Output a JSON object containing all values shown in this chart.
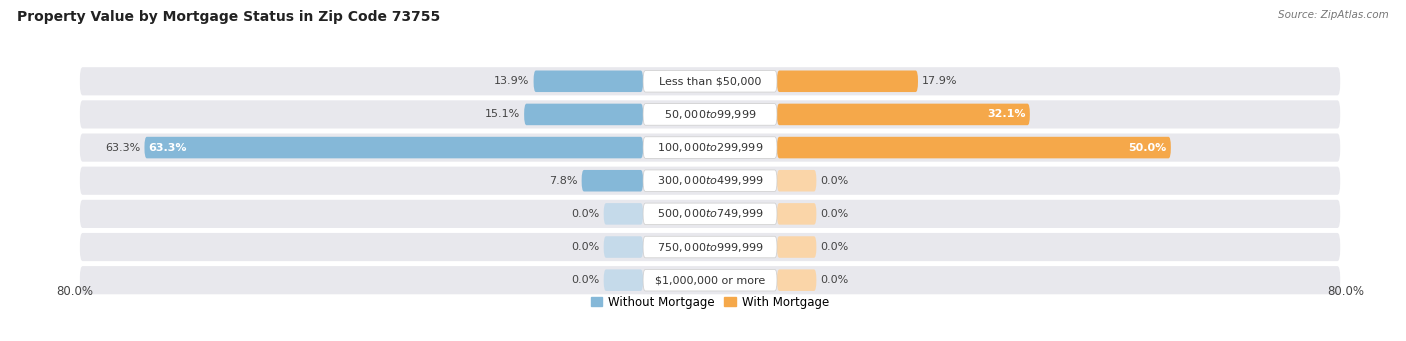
{
  "title": "Property Value by Mortgage Status in Zip Code 73755",
  "source": "Source: ZipAtlas.com",
  "categories": [
    "Less than $50,000",
    "$50,000 to $99,999",
    "$100,000 to $299,999",
    "$300,000 to $499,999",
    "$500,000 to $749,999",
    "$750,000 to $999,999",
    "$1,000,000 or more"
  ],
  "without_mortgage": [
    13.9,
    15.1,
    63.3,
    7.8,
    0.0,
    0.0,
    0.0
  ],
  "with_mortgage": [
    17.9,
    32.1,
    50.0,
    0.0,
    0.0,
    0.0,
    0.0
  ],
  "x_axis_label_left": "80.0%",
  "x_axis_label_right": "80.0%",
  "bar_color_left": "#85b8d8",
  "bar_color_right": "#f5a84a",
  "bar_color_left_zero": "#c5daea",
  "bar_color_right_zero": "#fad5a8",
  "legend_left": "Without Mortgage",
  "legend_right": "With Mortgage",
  "background_row_color": "#e8e8ed",
  "max_value": 80.0,
  "stub_value": 5.0,
  "title_fontsize": 10,
  "label_fontsize": 8,
  "category_fontsize": 8,
  "axis_label_fontsize": 8.5,
  "source_fontsize": 7.5
}
